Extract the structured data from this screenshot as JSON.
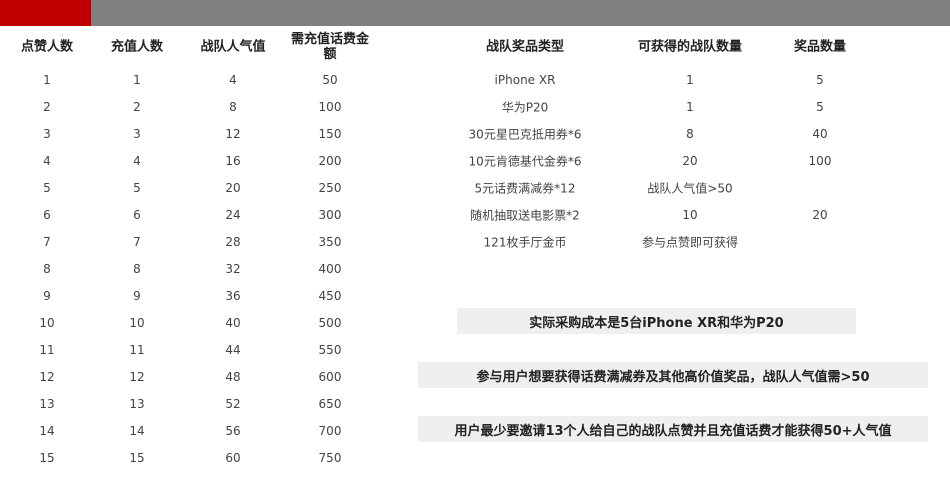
{
  "colors": {
    "accent_red": "#c00000",
    "bar_gray": "#808080",
    "banner_bg": "#efefef"
  },
  "left_table": {
    "headers": [
      "点赞人数",
      "充值人数",
      "战队人气值",
      "需充值话费金额"
    ],
    "rows": [
      [
        "1",
        "1",
        "4",
        "50"
      ],
      [
        "2",
        "2",
        "8",
        "100"
      ],
      [
        "3",
        "3",
        "12",
        "150"
      ],
      [
        "4",
        "4",
        "16",
        "200"
      ],
      [
        "5",
        "5",
        "20",
        "250"
      ],
      [
        "6",
        "6",
        "24",
        "300"
      ],
      [
        "7",
        "7",
        "28",
        "350"
      ],
      [
        "8",
        "8",
        "32",
        "400"
      ],
      [
        "9",
        "9",
        "36",
        "450"
      ],
      [
        "10",
        "10",
        "40",
        "500"
      ],
      [
        "11",
        "11",
        "44",
        "550"
      ],
      [
        "12",
        "12",
        "48",
        "600"
      ],
      [
        "13",
        "13",
        "52",
        "650"
      ],
      [
        "14",
        "14",
        "56",
        "700"
      ],
      [
        "15",
        "15",
        "60",
        "750"
      ]
    ]
  },
  "right_table": {
    "headers": [
      "战队奖品类型",
      "可获得的战队数量",
      "奖品数量"
    ],
    "rows": [
      [
        "iPhone XR",
        "1",
        "5"
      ],
      [
        "华为P20",
        "1",
        "5"
      ],
      [
        "30元星巴克抵用券*6",
        "8",
        "40"
      ],
      [
        "10元肯德基代金券*6",
        "20",
        "100"
      ],
      [
        "5元话费满减券*12",
        "战队人气值>50",
        ""
      ],
      [
        "随机抽取送电影票*2",
        "10",
        "20"
      ],
      [
        "121枚手厅金币",
        "参与点赞即可获得",
        ""
      ]
    ]
  },
  "banners": [
    "实际采购成本是5台iPhone XR和华为P20",
    "参与用户想要获得话费满减券及其他高价值奖品，战队人气值需>50",
    "用户最少要邀请13个人给自己的战队点赞并且充值话费才能获得50+人气值"
  ]
}
